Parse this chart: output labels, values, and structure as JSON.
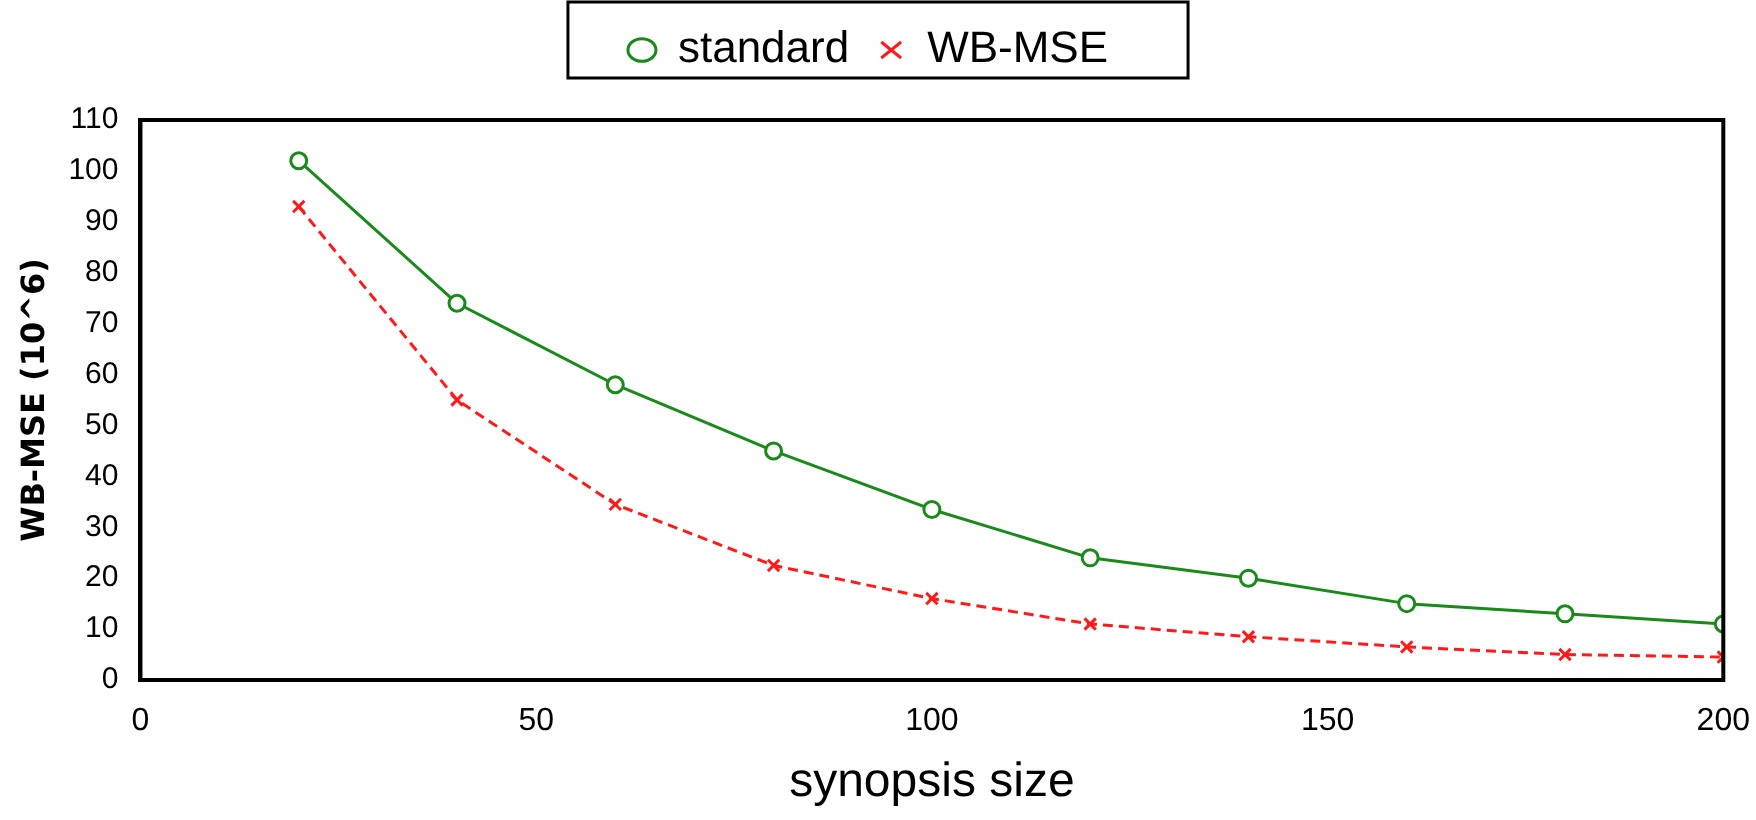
{
  "chart_data": {
    "type": "line",
    "xlabel": "synopsis size",
    "ylabel": "WB-MSE (10^6)",
    "x": [
      20,
      40,
      60,
      80,
      100,
      120,
      140,
      160,
      180,
      200
    ],
    "series": [
      {
        "name": "standard",
        "color": "#1a8a1a",
        "marker": "circle",
        "line_style": "solid",
        "values": [
          102,
          74,
          58,
          45,
          33.5,
          24,
          20,
          15,
          13,
          11
        ]
      },
      {
        "name": "WB-MSE",
        "color": "#ff1a1a",
        "marker": "cross",
        "line_style": "dashed",
        "values": [
          93,
          55,
          34.5,
          22.5,
          16,
          11,
          8.5,
          6.5,
          5,
          4.5
        ]
      }
    ],
    "xlim": [
      0,
      200
    ],
    "xticks": [
      0,
      50,
      100,
      150,
      200
    ],
    "ylim": [
      0,
      110
    ],
    "yticks": [
      0,
      10,
      20,
      30,
      40,
      50,
      60,
      70,
      80,
      90,
      100,
      110
    ],
    "grid": false,
    "legend": "top left"
  }
}
